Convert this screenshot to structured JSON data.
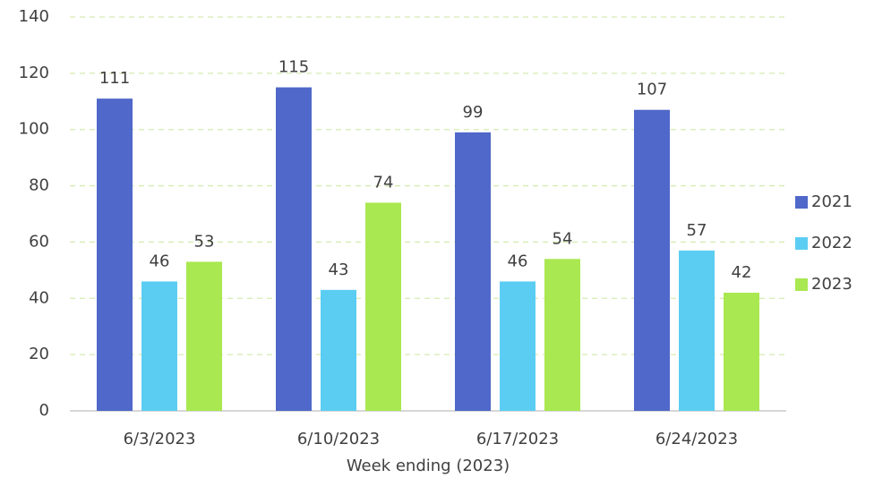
{
  "chart_data": {
    "type": "bar",
    "categories": [
      "6/3/2023",
      "6/10/2023",
      "6/17/2023",
      "6/24/2023"
    ],
    "series": [
      {
        "name": "2021",
        "color": "#4f68c9",
        "values": [
          111,
          115,
          99,
          107
        ]
      },
      {
        "name": "2022",
        "color": "#5ccdf2",
        "values": [
          46,
          43,
          46,
          57
        ]
      },
      {
        "name": "2023",
        "color": "#a9e851",
        "values": [
          53,
          74,
          54,
          42
        ]
      }
    ],
    "x_label": "Week ending (2023)",
    "ylim": [
      0,
      140
    ],
    "yticks": [
      0,
      20,
      40,
      60,
      80,
      100,
      120,
      140
    ],
    "grid": true,
    "legend": "right"
  }
}
